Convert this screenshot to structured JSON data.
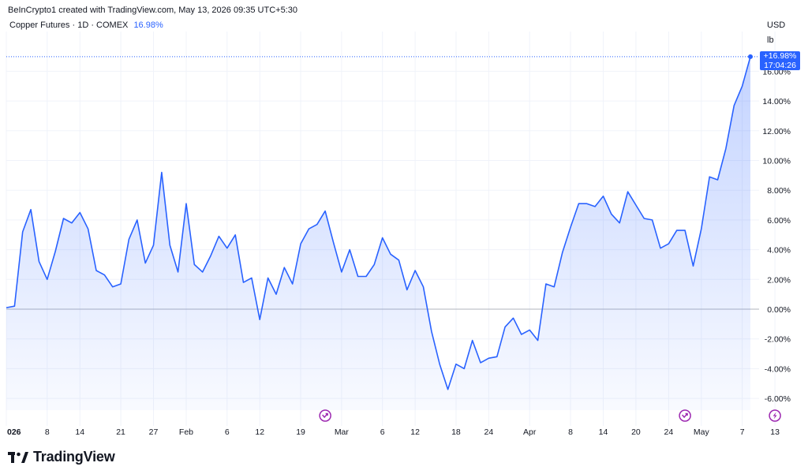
{
  "header": {
    "caption": "BeInCrypto1 created with TradingView.com, May 13, 2026 09:35 UTC+5:30"
  },
  "legend": {
    "symbol": "Copper Futures · 1D · COMEX",
    "change": "16.98%"
  },
  "axis_unit": {
    "currency": "USD",
    "per": "lb"
  },
  "last_badge": {
    "value": "+16.98%",
    "time": "17:04:26"
  },
  "footer": {
    "brand": "TradingView",
    "logo": "tradingview-logo-icon"
  },
  "colors": {
    "line": "#2962ff",
    "badge": "#2962ff",
    "event_icon": "#9c27b0"
  },
  "chart_data": {
    "type": "area",
    "y_unit": "%",
    "ylim": [
      -7,
      18
    ],
    "yticks": [
      "16.00%",
      "14.00%",
      "12.00%",
      "10.00%",
      "8.00%",
      "6.00%",
      "4.00%",
      "2.00%",
      "0.00%",
      "-2.00%",
      "-4.00%",
      "-6.00%"
    ],
    "ytick_values": [
      16,
      14,
      12,
      10,
      8,
      6,
      4,
      2,
      0,
      -2,
      -4,
      -6
    ],
    "xtick_labels": [
      "026",
      "8",
      "14",
      "21",
      "27",
      "Feb",
      "6",
      "12",
      "19",
      "Mar",
      "6",
      "12",
      "18",
      "24",
      "Apr",
      "8",
      "14",
      "20",
      "24",
      "May",
      "7",
      "13"
    ],
    "xtick_index": [
      0,
      5,
      9,
      14,
      18,
      22,
      27,
      31,
      36,
      41,
      46,
      50,
      55,
      59,
      64,
      69,
      73,
      77,
      81,
      85,
      90,
      94
    ],
    "grid": true,
    "baseline": 0,
    "values": [
      0.1,
      0.2,
      5.2,
      6.7,
      3.2,
      2.0,
      3.9,
      6.1,
      5.8,
      6.5,
      5.4,
      2.6,
      2.3,
      1.5,
      1.7,
      4.7,
      6.0,
      3.1,
      4.3,
      9.2,
      4.3,
      2.5,
      7.1,
      3.0,
      2.5,
      3.6,
      4.9,
      4.1,
      5.0,
      1.8,
      2.1,
      -0.7,
      2.1,
      1.0,
      2.8,
      1.7,
      4.4,
      5.4,
      5.7,
      6.6,
      4.5,
      2.5,
      4.0,
      2.2,
      2.2,
      3.0,
      4.8,
      3.7,
      3.3,
      1.3,
      2.6,
      1.5,
      -1.5,
      -3.7,
      -5.4,
      -3.7,
      -4.0,
      -2.1,
      -3.6,
      -3.3,
      -3.2,
      -1.2,
      -0.6,
      -1.7,
      -1.4,
      -2.1,
      1.7,
      1.5,
      3.8,
      5.5,
      7.1,
      7.1,
      6.9,
      7.6,
      6.4,
      5.8,
      7.9,
      7.0,
      6.1,
      6.0,
      4.1,
      4.4,
      5.3,
      5.3,
      2.9,
      5.4,
      8.9,
      8.7,
      10.8,
      13.7,
      15.0,
      16.98
    ],
    "events": [
      {
        "name": "earnings-icon",
        "index": 39
      },
      {
        "name": "earnings-icon",
        "index": 83
      },
      {
        "name": "lightning-icon",
        "index": 94
      }
    ]
  }
}
